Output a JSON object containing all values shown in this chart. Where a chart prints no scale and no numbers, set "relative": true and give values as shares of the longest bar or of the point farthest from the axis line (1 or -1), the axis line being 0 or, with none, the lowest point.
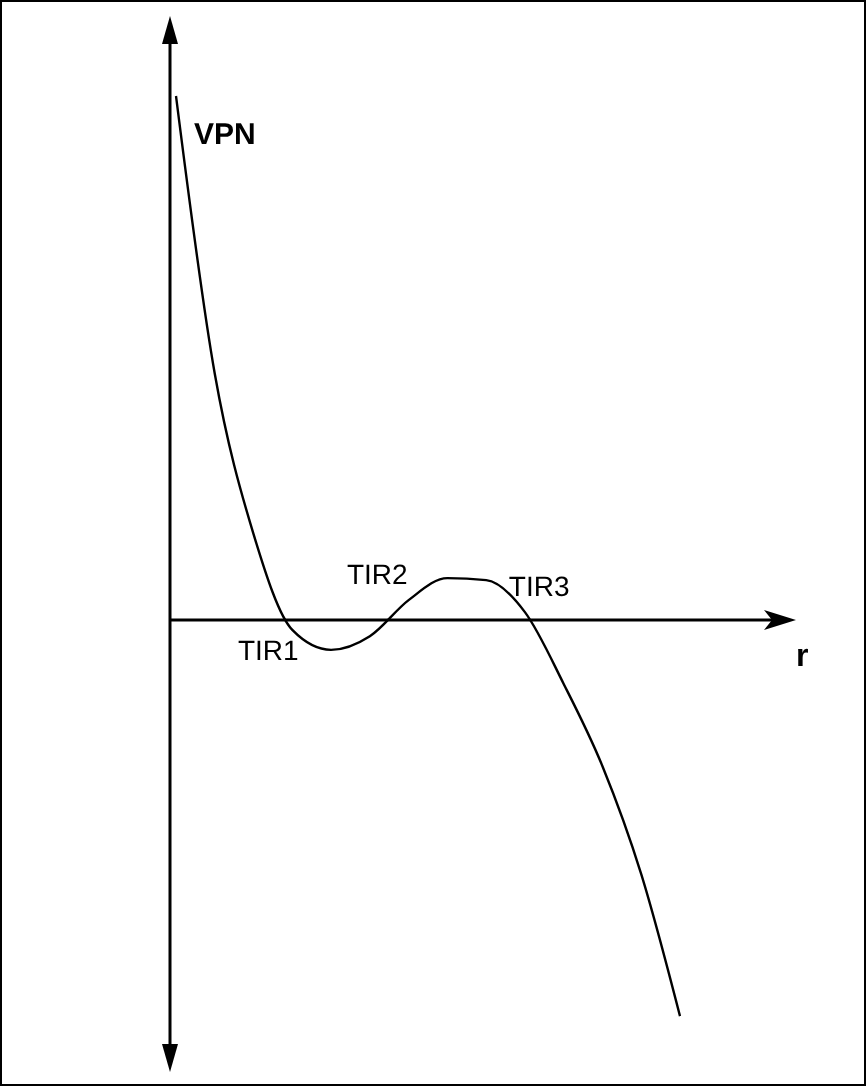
{
  "chart_data": {
    "type": "line",
    "relative": true,
    "ylabel": "VPN",
    "xlabel": "r",
    "categories": [
      null,
      null,
      null,
      null,
      null,
      null,
      null,
      null,
      null,
      null,
      null,
      null,
      null,
      null
    ],
    "series": [
      {
        "color": "#000000",
        "values": [
          1.0,
          0.47,
          0.164,
          -0.019,
          -0.057,
          -0.031,
          0.038,
          0.08,
          0.076,
          0.015,
          -0.122,
          -0.279,
          -0.485,
          -0.756
        ]
      }
    ],
    "annotations": [
      "TIR1",
      "TIR2",
      "TIR3"
    ],
    "marker": "none",
    "line_style": "solid"
  }
}
